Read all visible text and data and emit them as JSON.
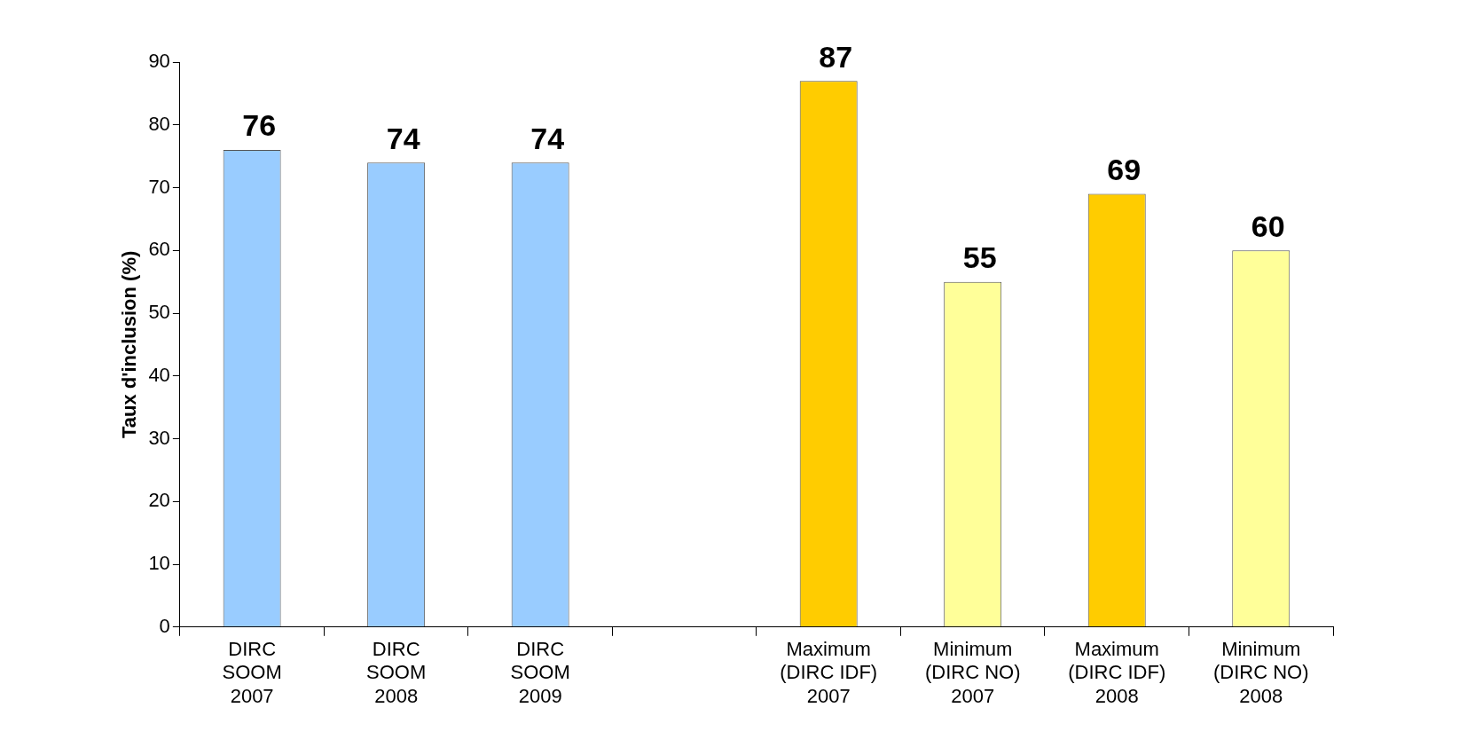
{
  "chart_data": {
    "type": "bar",
    "ylabel": "Taux d'inclusion (%)",
    "categories": [
      "DIRC\nSOOM\n2007",
      "DIRC\nSOOM\n2008",
      "DIRC\nSOOM\n2009",
      null,
      "Maximum\n(DIRC IDF)\n2007",
      "Minimum\n(DIRC NO)\n2007",
      "Maximum\n(DIRC IDF)\n2008",
      "Minimum\n(DIRC NO)\n2008"
    ],
    "values": [
      76,
      74,
      74,
      null,
      87,
      55,
      69,
      60
    ],
    "colors": [
      "#99ccff",
      "#99ccff",
      "#99ccff",
      "#99ccff",
      "#ffcc00",
      "#ffff99",
      "#ffcc00",
      "#ffff99"
    ],
    "ylim": [
      0,
      90
    ],
    "yticks": [
      0,
      10,
      20,
      30,
      40,
      50,
      60,
      70,
      80,
      90
    ],
    "data_labels": true
  }
}
